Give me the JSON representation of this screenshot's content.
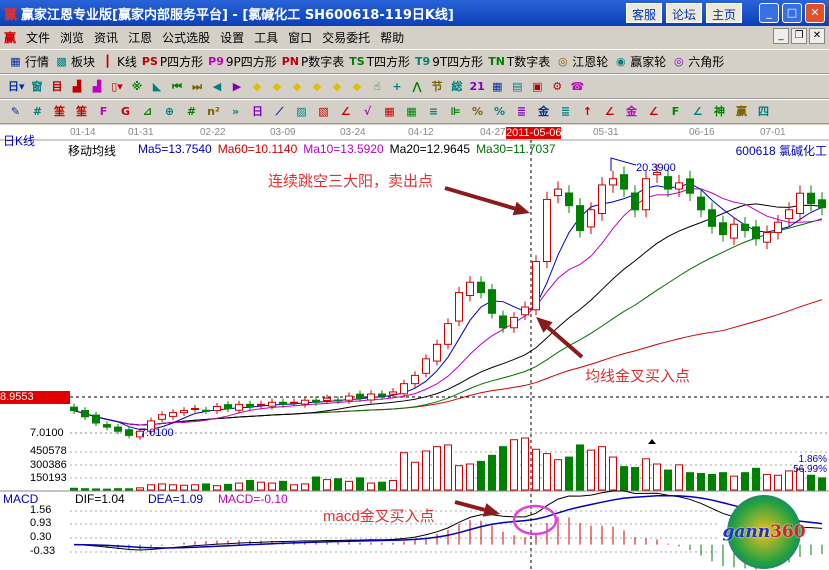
{
  "window": {
    "title": "赢家江恩专业版[赢家内部服务平台] - [氯碱化工   SH600618-119日K线]",
    "buttons": [
      "客服",
      "论坛",
      "主页"
    ]
  },
  "menu": [
    "文件",
    "浏览",
    "资讯",
    "江恩",
    "公式选股",
    "设置",
    "工具",
    "窗口",
    "交易委托",
    "帮助"
  ],
  "toolbar1": [
    {
      "icon": "grid-icon",
      "glyph": "▦",
      "label": "行情"
    },
    {
      "icon": "blocks-icon",
      "glyph": "▩",
      "label": "板块"
    },
    {
      "icon": "kline-icon",
      "glyph": "┃",
      "label": "K线"
    },
    {
      "icon": "ps-icon",
      "glyph": "PS",
      "label": "P四方形"
    },
    {
      "icon": "p9-icon",
      "glyph": "P9",
      "label": "9P四方形"
    },
    {
      "icon": "pn-icon",
      "glyph": "PN",
      "label": "P数字表"
    },
    {
      "icon": "ts-icon",
      "glyph": "TS",
      "label": "T四方形"
    },
    {
      "icon": "t9-icon",
      "glyph": "T9",
      "label": "9T四方形"
    },
    {
      "icon": "tn-icon",
      "glyph": "TN",
      "label": "T数字表"
    },
    {
      "icon": "gann-wheel-icon",
      "glyph": "◎",
      "label": "江恩轮"
    },
    {
      "icon": "winner-wheel-icon",
      "glyph": "◉",
      "label": "赢家轮"
    },
    {
      "icon": "hexagon-icon",
      "glyph": "◎",
      "label": "六角形"
    }
  ],
  "toolbar2": [
    {
      "icon": "period-day-icon",
      "glyph": "日▾"
    },
    {
      "icon": "window-icon",
      "glyph": "窗"
    },
    {
      "icon": "list-icon",
      "glyph": "目"
    },
    {
      "icon": "bars3-icon",
      "glyph": "▟"
    },
    {
      "icon": "bars9-icon",
      "glyph": "▟"
    },
    {
      "icon": "candle-icon",
      "glyph": "▯▾"
    },
    {
      "icon": "pattern-icon",
      "glyph": "※"
    },
    {
      "icon": "flag-icon",
      "glyph": "◣"
    },
    {
      "icon": "first-icon",
      "glyph": "⏮"
    },
    {
      "icon": "last-icon",
      "glyph": "⏭"
    },
    {
      "icon": "prev-icon",
      "glyph": "◀"
    },
    {
      "icon": "next-icon",
      "glyph": "▶"
    },
    {
      "icon": "left-diamond-icon",
      "glyph": "◆"
    },
    {
      "icon": "up-diamond-icon",
      "glyph": "◆"
    },
    {
      "icon": "h-diamond-icon",
      "glyph": "◆"
    },
    {
      "icon": "v-diamond-icon",
      "glyph": "◆"
    },
    {
      "icon": "cross-diamond-icon",
      "glyph": "◆"
    },
    {
      "icon": "all-diamond-icon",
      "glyph": "◆"
    },
    {
      "icon": "hand-icon",
      "glyph": "☝"
    },
    {
      "icon": "crosshair-icon",
      "glyph": "+"
    },
    {
      "icon": "line-icon",
      "glyph": "⋀"
    },
    {
      "icon": "section-icon",
      "glyph": "节"
    },
    {
      "icon": "grid2-icon",
      "glyph": "総"
    },
    {
      "icon": "calendar-icon",
      "glyph": "21"
    },
    {
      "icon": "calculator-icon",
      "glyph": "▦"
    },
    {
      "icon": "notes-icon",
      "glyph": "▤"
    },
    {
      "icon": "save-icon",
      "glyph": "▣"
    },
    {
      "icon": "network-icon",
      "glyph": "⚙"
    },
    {
      "icon": "phone-icon",
      "glyph": "☎"
    }
  ],
  "toolbar3": [
    {
      "icon": "pen-icon",
      "glyph": "✎"
    },
    {
      "icon": "hash-icon",
      "glyph": "#"
    },
    {
      "icon": "gold1-icon",
      "glyph": "筀"
    },
    {
      "icon": "gold2-icon",
      "glyph": "筀"
    },
    {
      "icon": "f-icon",
      "glyph": "F"
    },
    {
      "icon": "spiral-icon",
      "glyph": "G"
    },
    {
      "icon": "fan-icon",
      "glyph": "⊿"
    },
    {
      "icon": "circle-grid-icon",
      "glyph": "⊕"
    },
    {
      "icon": "hash2-icon",
      "glyph": "#"
    },
    {
      "icon": "n2-icon",
      "glyph": "n²"
    },
    {
      "icon": "more-icon",
      "glyph": "»"
    },
    {
      "icon": "frame-icon",
      "glyph": "日"
    },
    {
      "icon": "rays-icon",
      "glyph": "⟋"
    },
    {
      "icon": "box-fan-icon",
      "glyph": "▨"
    },
    {
      "icon": "box-fan2-icon",
      "glyph": "▧"
    },
    {
      "icon": "angle-icon",
      "glyph": "∠"
    },
    {
      "icon": "v-icon",
      "glyph": "√"
    },
    {
      "icon": "grid3-icon",
      "glyph": "▦"
    },
    {
      "icon": "grid4-icon",
      "glyph": "▦"
    },
    {
      "icon": "parallel-icon",
      "glyph": "≡"
    },
    {
      "icon": "ruler-icon",
      "glyph": "⊫"
    },
    {
      "icon": "percent-fan-icon",
      "glyph": "%"
    },
    {
      "icon": "percent-icon",
      "glyph": "%"
    },
    {
      "icon": "percent-lines-icon",
      "glyph": "≣"
    },
    {
      "icon": "coin-icon",
      "glyph": "金"
    },
    {
      "icon": "gold-lines-icon",
      "glyph": "≣"
    },
    {
      "icon": "arrow-up-icon",
      "glyph": "↑"
    },
    {
      "icon": "gold-fan-icon",
      "glyph": "∠"
    },
    {
      "icon": "gold3-icon",
      "glyph": "金"
    },
    {
      "icon": "angle2-icon",
      "glyph": "∠"
    },
    {
      "icon": "f-angle-icon",
      "glyph": "F"
    },
    {
      "icon": "gold-angle-icon",
      "glyph": "∠"
    },
    {
      "icon": "shen-icon",
      "glyph": "神"
    },
    {
      "icon": "win-icon",
      "glyph": "赢"
    },
    {
      "icon": "four-icon",
      "glyph": "四"
    }
  ],
  "chart": {
    "period_label": "日K线",
    "dates": [
      "01-14",
      "01-31",
      "02-22",
      "03-09",
      "03-24",
      "04-12",
      "04-27",
      "2011-05-06",
      "05-31",
      "06-16",
      "07-01"
    ],
    "indicator_name": "移动均线",
    "ma": [
      {
        "label": "Ma5=13.7540",
        "color": "#0000c0"
      },
      {
        "label": "Ma60=10.1140",
        "color": "#d00000"
      },
      {
        "label": "Ma10=13.5920",
        "color": "#c000c0"
      },
      {
        "label": "Ma20=12.9645",
        "color": "#000000"
      },
      {
        "label": "Ma30=11.7037",
        "color": "#007000"
      }
    ],
    "stock": "600618 氯碱化工",
    "current_price_label": "8.9553",
    "low_axis_label": "7.0100",
    "high_marker": "20.3900",
    "low_marker": "7.0100",
    "volume_labels": [
      "450578",
      "300386",
      "150193"
    ],
    "volume_pct": [
      "1.86%",
      "56.99%"
    ],
    "macd": {
      "name": "MACD",
      "dif": "DIF=1.04",
      "dea": "DEA=1.09",
      "macd": "MACD=-0.10",
      "axis": [
        "1.56",
        "0.93",
        "0.30",
        "-0.33"
      ]
    },
    "annotations": {
      "sell": "连续跳空三大阳，卖出点",
      "ma_buy": "均线金叉买入点",
      "macd_buy": "macd金叉买入点"
    },
    "logo": "gann360",
    "colors": {
      "up": "#d00000",
      "down": "#008000",
      "annotation": "#e03030",
      "arrow": "#8b1a1a",
      "circle": "#e040e0"
    },
    "closes": [
      8.3,
      8.0,
      7.7,
      7.5,
      7.3,
      7.1,
      7.3,
      7.8,
      8.1,
      8.2,
      8.3,
      8.4,
      8.3,
      8.5,
      8.4,
      8.6,
      8.5,
      8.6,
      8.7,
      8.6,
      8.7,
      8.8,
      8.7,
      8.9,
      8.8,
      9.0,
      8.9,
      9.1,
      9.0,
      9.2,
      9.6,
      10.0,
      10.8,
      11.5,
      12.5,
      14.0,
      14.5,
      14.0,
      13.0,
      12.3,
      12.8,
      13.3,
      15.5,
      18.5,
      19.0,
      18.2,
      17.0,
      18.0,
      19.2,
      19.5,
      19.0,
      18.0,
      19.5,
      19.8,
      19.0,
      19.3,
      18.8,
      18.0,
      17.2,
      16.8,
      17.3,
      17.0,
      16.6,
      16.9,
      17.4,
      18.0,
      18.8,
      18.3,
      18.1
    ],
    "volumes": [
      20000,
      15000,
      12000,
      10000,
      15000,
      14000,
      25000,
      60000,
      70000,
      60000,
      55000,
      60000,
      70000,
      50000,
      65000,
      80000,
      110000,
      90000,
      80000,
      100000,
      60000,
      70000,
      150000,
      120000,
      130000,
      100000,
      140000,
      80000,
      90000,
      110000,
      430000,
      320000,
      450000,
      500000,
      520000,
      280000,
      300000,
      330000,
      400000,
      500000,
      580000,
      600000,
      470000,
      420000,
      350000,
      380000,
      520000,
      460000,
      500000,
      380000,
      270000,
      260000,
      360000,
      300000,
      230000,
      290000,
      200000,
      190000,
      180000,
      200000,
      160000,
      200000,
      250000,
      180000,
      170000,
      220000,
      240000,
      170000,
      140000
    ]
  }
}
